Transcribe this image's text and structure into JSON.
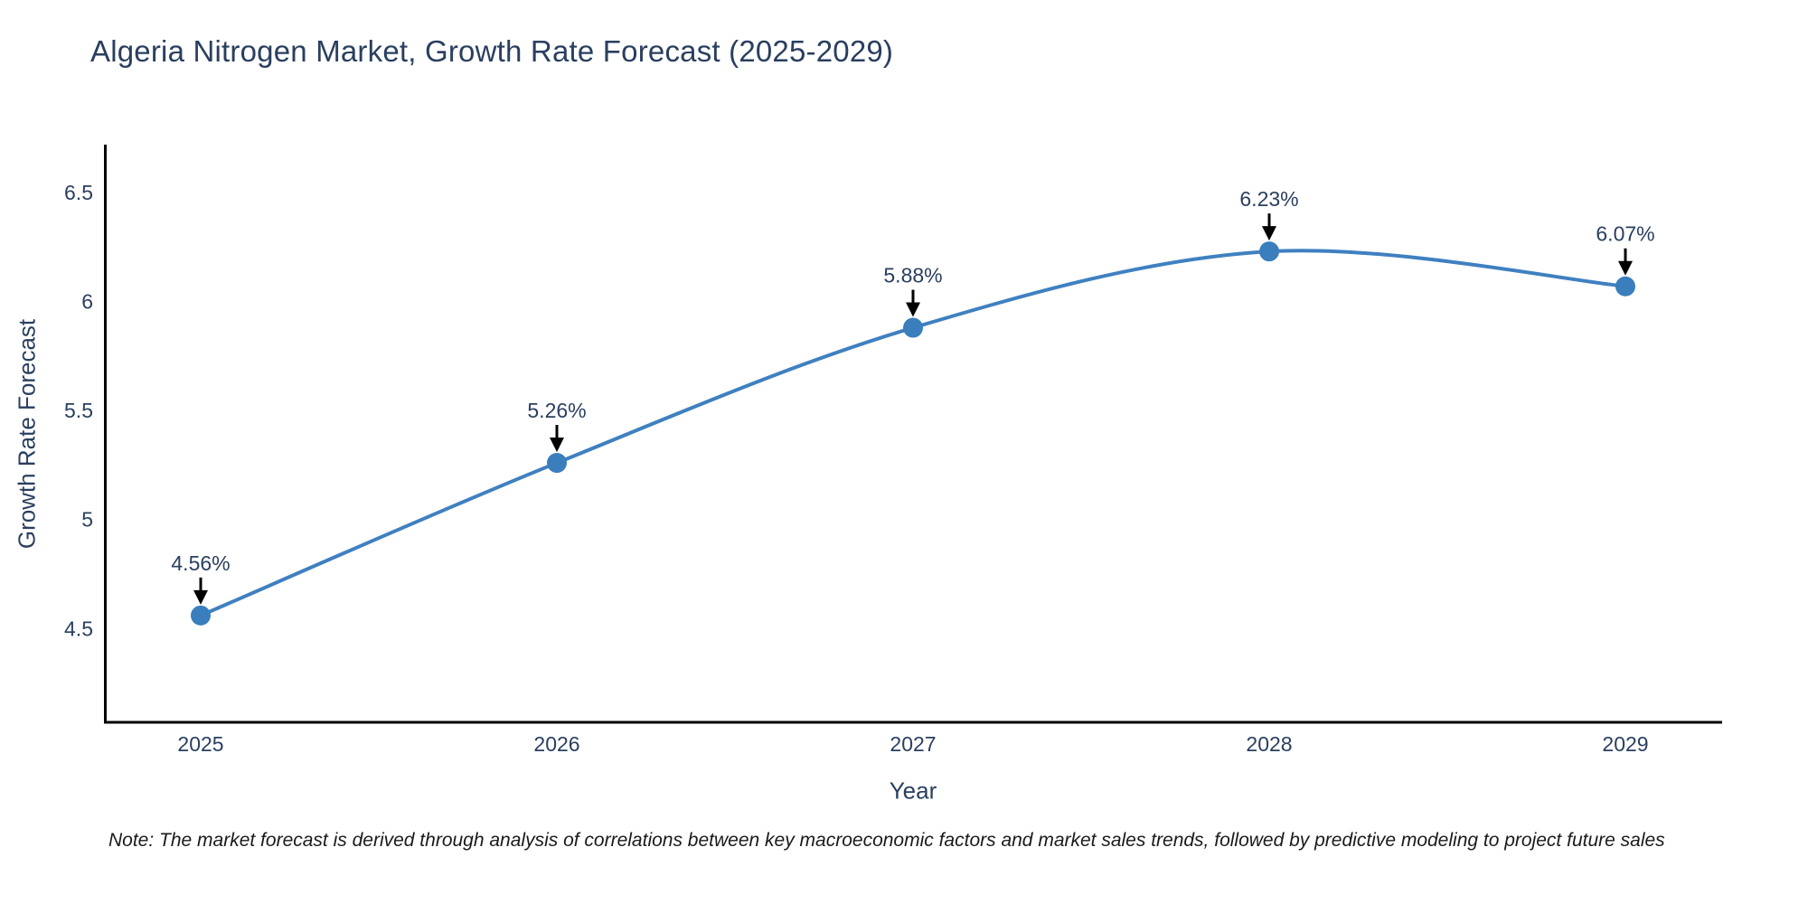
{
  "page": {
    "background": "#ffffff"
  },
  "chart_data": {
    "type": "line",
    "title": "Algeria Nitrogen Market, Growth Rate Forecast (2025-2029)",
    "xlabel": "Year",
    "ylabel": "Growth Rate Forecast",
    "categories": [
      "2025",
      "2026",
      "2027",
      "2028",
      "2029"
    ],
    "series": [
      {
        "name": "Growth Rate Forecast",
        "values": [
          4.56,
          5.26,
          5.88,
          6.23,
          6.07
        ],
        "point_labels": [
          "4.56%",
          "5.26%",
          "5.88%",
          "6.23%",
          "6.07%"
        ]
      }
    ],
    "yticks": {
      "values": [
        4.5,
        5.0,
        5.5,
        6.0,
        6.5
      ],
      "labels": [
        "4.5",
        "5",
        "5.5",
        "6",
        "6.5"
      ]
    },
    "ylim": [
      4.07,
      6.72
    ],
    "line_shape": "spline",
    "grid": false,
    "legend_position": "none",
    "annotation_style": "down-arrow",
    "colors": {
      "line": "#3f80c0",
      "marker": "#3a7ebd",
      "arrow": "#000000",
      "text": "#2a3f5f",
      "axis": "#000000"
    }
  },
  "note": {
    "text": "Note: The market forecast is derived through analysis of correlations between key macroeconomic factors and market sales trends, followed by predictive modeling to project future sales"
  }
}
